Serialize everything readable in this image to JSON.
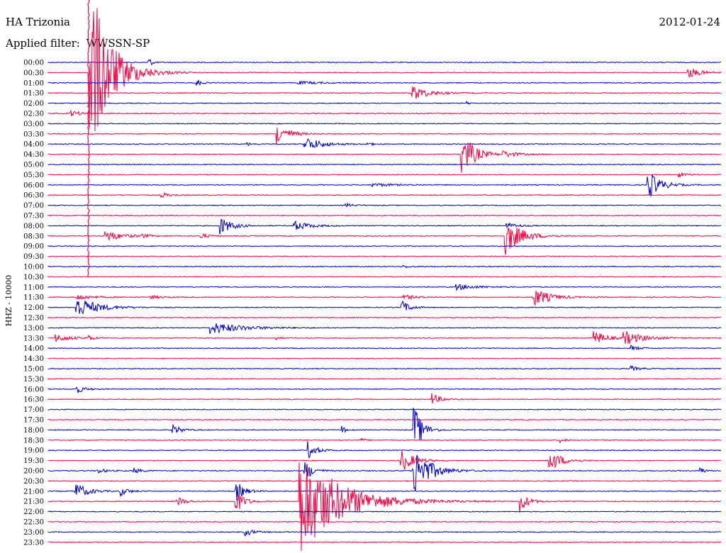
{
  "header": {
    "station": "HA Trizonia",
    "date": "2012-01-24",
    "filter_label": "Applied filter:",
    "filter_value": "WWSSN-SP",
    "channel_label": "HHZ - 10000"
  },
  "colors": {
    "blue": "#0000cc",
    "red": "#ff0040",
    "text": "#000000",
    "background": "#ffffff"
  },
  "chart_data": {
    "type": "line",
    "title": "HA Trizonia",
    "ylabel": "HHZ - 10000",
    "row_labels": [
      "00:00",
      "00:30",
      "01:00",
      "01:30",
      "02:00",
      "02:30",
      "03:00",
      "03:30",
      "04:00",
      "04:30",
      "05:00",
      "05:30",
      "06:00",
      "06:30",
      "07:00",
      "07:30",
      "08:00",
      "08:30",
      "09:00",
      "09:30",
      "10:00",
      "10:30",
      "11:00",
      "11:30",
      "12:00",
      "12:30",
      "13:00",
      "13:30",
      "14:00",
      "14:30",
      "15:00",
      "15:30",
      "16:00",
      "16:30",
      "17:00",
      "17:30",
      "18:00",
      "18:30",
      "19:00",
      "19:30",
      "20:00",
      "20:30",
      "21:00",
      "21:30",
      "22:00",
      "22:30",
      "23:00",
      "23:30"
    ],
    "row_minutes": 30,
    "x_unit": "fraction of 30-minute row",
    "y_unit": "relative amplitude (trace spacing = 1)",
    "series_colors": [
      "blue",
      "red"
    ],
    "events": [
      {
        "row": 0,
        "x": 0.148,
        "amp": 0.6,
        "dur": 0.01
      },
      {
        "row": 1,
        "x": 0.06,
        "amp": 10.0,
        "dur": 0.05
      },
      {
        "row": 1,
        "x": 0.95,
        "amp": 0.6,
        "dur": 0.03
      },
      {
        "row": 2,
        "x": 0.22,
        "amp": 0.5,
        "dur": 0.01
      },
      {
        "row": 2,
        "x": 0.37,
        "amp": 0.15,
        "dur": 0.06
      },
      {
        "row": 3,
        "x": 0.54,
        "amp": 0.8,
        "dur": 0.04
      },
      {
        "row": 4,
        "x": 0.62,
        "amp": 0.2,
        "dur": 0.01
      },
      {
        "row": 5,
        "x": 0.032,
        "amp": 0.3,
        "dur": 0.03
      },
      {
        "row": 7,
        "x": 0.339,
        "amp": 1.1,
        "dur": 0.03
      },
      {
        "row": 8,
        "x": 0.38,
        "amp": 0.8,
        "dur": 0.04
      },
      {
        "row": 8,
        "x": 0.294,
        "amp": 0.2,
        "dur": 0.01
      },
      {
        "row": 8,
        "x": 0.474,
        "amp": 0.25,
        "dur": 0.01
      },
      {
        "row": 9,
        "x": 0.613,
        "amp": 2.6,
        "dur": 0.03
      },
      {
        "row": 9,
        "x": 0.675,
        "amp": 0.3,
        "dur": 0.04
      },
      {
        "row": 11,
        "x": 0.936,
        "amp": 0.3,
        "dur": 0.02
      },
      {
        "row": 12,
        "x": 0.89,
        "amp": 1.6,
        "dur": 0.03
      },
      {
        "row": 12,
        "x": 0.48,
        "amp": 0.2,
        "dur": 0.05
      },
      {
        "row": 13,
        "x": 0.167,
        "amp": 0.3,
        "dur": 0.02
      },
      {
        "row": 14,
        "x": 0.441,
        "amp": 0.2,
        "dur": 0.02
      },
      {
        "row": 16,
        "x": 0.255,
        "amp": 0.9,
        "dur": 0.03
      },
      {
        "row": 16,
        "x": 0.364,
        "amp": 0.5,
        "dur": 0.04
      },
      {
        "row": 16,
        "x": 0.68,
        "amp": 0.3,
        "dur": 0.03
      },
      {
        "row": 17,
        "x": 0.084,
        "amp": 0.6,
        "dur": 0.04
      },
      {
        "row": 17,
        "x": 0.137,
        "amp": 0.2,
        "dur": 0.02
      },
      {
        "row": 17,
        "x": 0.226,
        "amp": 0.3,
        "dur": 0.02
      },
      {
        "row": 17,
        "x": 0.678,
        "amp": 2.0,
        "dur": 0.04
      },
      {
        "row": 20,
        "x": 0.526,
        "amp": 0.15,
        "dur": 0.02
      },
      {
        "row": 22,
        "x": 0.605,
        "amp": 0.3,
        "dur": 0.05
      },
      {
        "row": 23,
        "x": 0.042,
        "amp": 0.3,
        "dur": 0.04
      },
      {
        "row": 23,
        "x": 0.15,
        "amp": 0.2,
        "dur": 0.03
      },
      {
        "row": 23,
        "x": 0.527,
        "amp": 0.3,
        "dur": 0.03
      },
      {
        "row": 23,
        "x": 0.72,
        "amp": 1.0,
        "dur": 0.04
      },
      {
        "row": 24,
        "x": 0.04,
        "amp": 1.2,
        "dur": 0.05
      },
      {
        "row": 24,
        "x": 0.524,
        "amp": 0.8,
        "dur": 0.02
      },
      {
        "row": 26,
        "x": 0.24,
        "amp": 0.6,
        "dur": 0.08
      },
      {
        "row": 27,
        "x": 0.01,
        "amp": 0.4,
        "dur": 0.04
      },
      {
        "row": 27,
        "x": 0.06,
        "amp": 0.3,
        "dur": 0.01
      },
      {
        "row": 27,
        "x": 0.338,
        "amp": 0.2,
        "dur": 0.01
      },
      {
        "row": 27,
        "x": 0.81,
        "amp": 0.8,
        "dur": 0.03
      },
      {
        "row": 27,
        "x": 0.854,
        "amp": 0.7,
        "dur": 0.05
      },
      {
        "row": 28,
        "x": 0.865,
        "amp": 0.3,
        "dur": 0.02
      },
      {
        "row": 30,
        "x": 0.865,
        "amp": 0.3,
        "dur": 0.02
      },
      {
        "row": 32,
        "x": 0.04,
        "amp": 0.5,
        "dur": 0.02
      },
      {
        "row": 33,
        "x": 0.569,
        "amp": 0.7,
        "dur": 0.02
      },
      {
        "row": 36,
        "x": 0.184,
        "amp": 0.6,
        "dur": 0.02
      },
      {
        "row": 36,
        "x": 0.436,
        "amp": 0.4,
        "dur": 0.01
      },
      {
        "row": 36,
        "x": 0.542,
        "amp": 3.0,
        "dur": 0.02
      },
      {
        "row": 37,
        "x": 0.463,
        "amp": 0.3,
        "dur": 0.01
      },
      {
        "row": 37,
        "x": 0.76,
        "amp": 0.3,
        "dur": 0.01
      },
      {
        "row": 38,
        "x": 0.385,
        "amp": 1.0,
        "dur": 0.02
      },
      {
        "row": 39,
        "x": 0.523,
        "amp": 1.3,
        "dur": 0.03
      },
      {
        "row": 39,
        "x": 0.743,
        "amp": 1.3,
        "dur": 0.03
      },
      {
        "row": 40,
        "x": 0.072,
        "amp": 0.3,
        "dur": 0.02
      },
      {
        "row": 40,
        "x": 0.126,
        "amp": 0.3,
        "dur": 0.02
      },
      {
        "row": 40,
        "x": 0.541,
        "amp": 2.8,
        "dur": 0.04
      },
      {
        "row": 40,
        "x": 0.968,
        "amp": 0.5,
        "dur": 0.01
      },
      {
        "row": 40,
        "x": 0.38,
        "amp": 1.2,
        "dur": 0.02
      },
      {
        "row": 42,
        "x": 0.04,
        "amp": 0.9,
        "dur": 0.03
      },
      {
        "row": 42,
        "x": 0.106,
        "amp": 0.5,
        "dur": 0.02
      },
      {
        "row": 42,
        "x": 0.278,
        "amp": 1.2,
        "dur": 0.02
      },
      {
        "row": 43,
        "x": 0.19,
        "amp": 0.6,
        "dur": 0.02
      },
      {
        "row": 43,
        "x": 0.278,
        "amp": 1.3,
        "dur": 0.02
      },
      {
        "row": 43,
        "x": 0.372,
        "amp": 5.5,
        "dur": 0.1
      },
      {
        "row": 43,
        "x": 0.7,
        "amp": 1.2,
        "dur": 0.02
      },
      {
        "row": 46,
        "x": 0.291,
        "amp": 0.5,
        "dur": 0.02
      }
    ],
    "saturated_trace": {
      "row": 1,
      "x": 0.06,
      "top_row": 0,
      "bottom_row": 21
    }
  }
}
